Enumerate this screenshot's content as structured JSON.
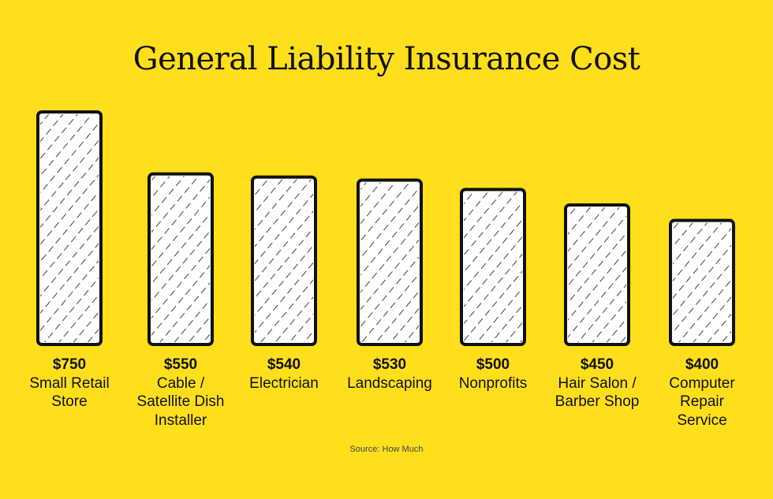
{
  "chart_data": {
    "type": "bar",
    "title": "General Liability Insurance Cost",
    "categories": [
      "Small Retail Store",
      "Cable / Satellite Dish Installer",
      "Electrician",
      "Landscaping",
      "Nonprofits",
      "Hair Salon / Barber Shop",
      "Computer Repair Service"
    ],
    "category_lines": [
      [
        "Small Retail",
        "Store"
      ],
      [
        "Cable /",
        "Satellite Dish",
        "Installer"
      ],
      [
        "Electrician"
      ],
      [
        "Landscaping"
      ],
      [
        "Nonprofits"
      ],
      [
        "Hair Salon /",
        "Barber Shop"
      ],
      [
        "Computer",
        "Repair",
        "Service"
      ]
    ],
    "values": [
      750,
      550,
      540,
      530,
      500,
      450,
      400
    ],
    "value_labels": [
      "$750",
      "$550",
      "$540",
      "$530",
      "$500",
      "$450",
      "$400"
    ],
    "xlabel": "",
    "ylabel": "",
    "grid": false,
    "source": "Source: How Much",
    "colors": {
      "background": "#FFDF1B",
      "bar_fill": "#FFFFFF",
      "bar_outline": "#111111"
    }
  }
}
